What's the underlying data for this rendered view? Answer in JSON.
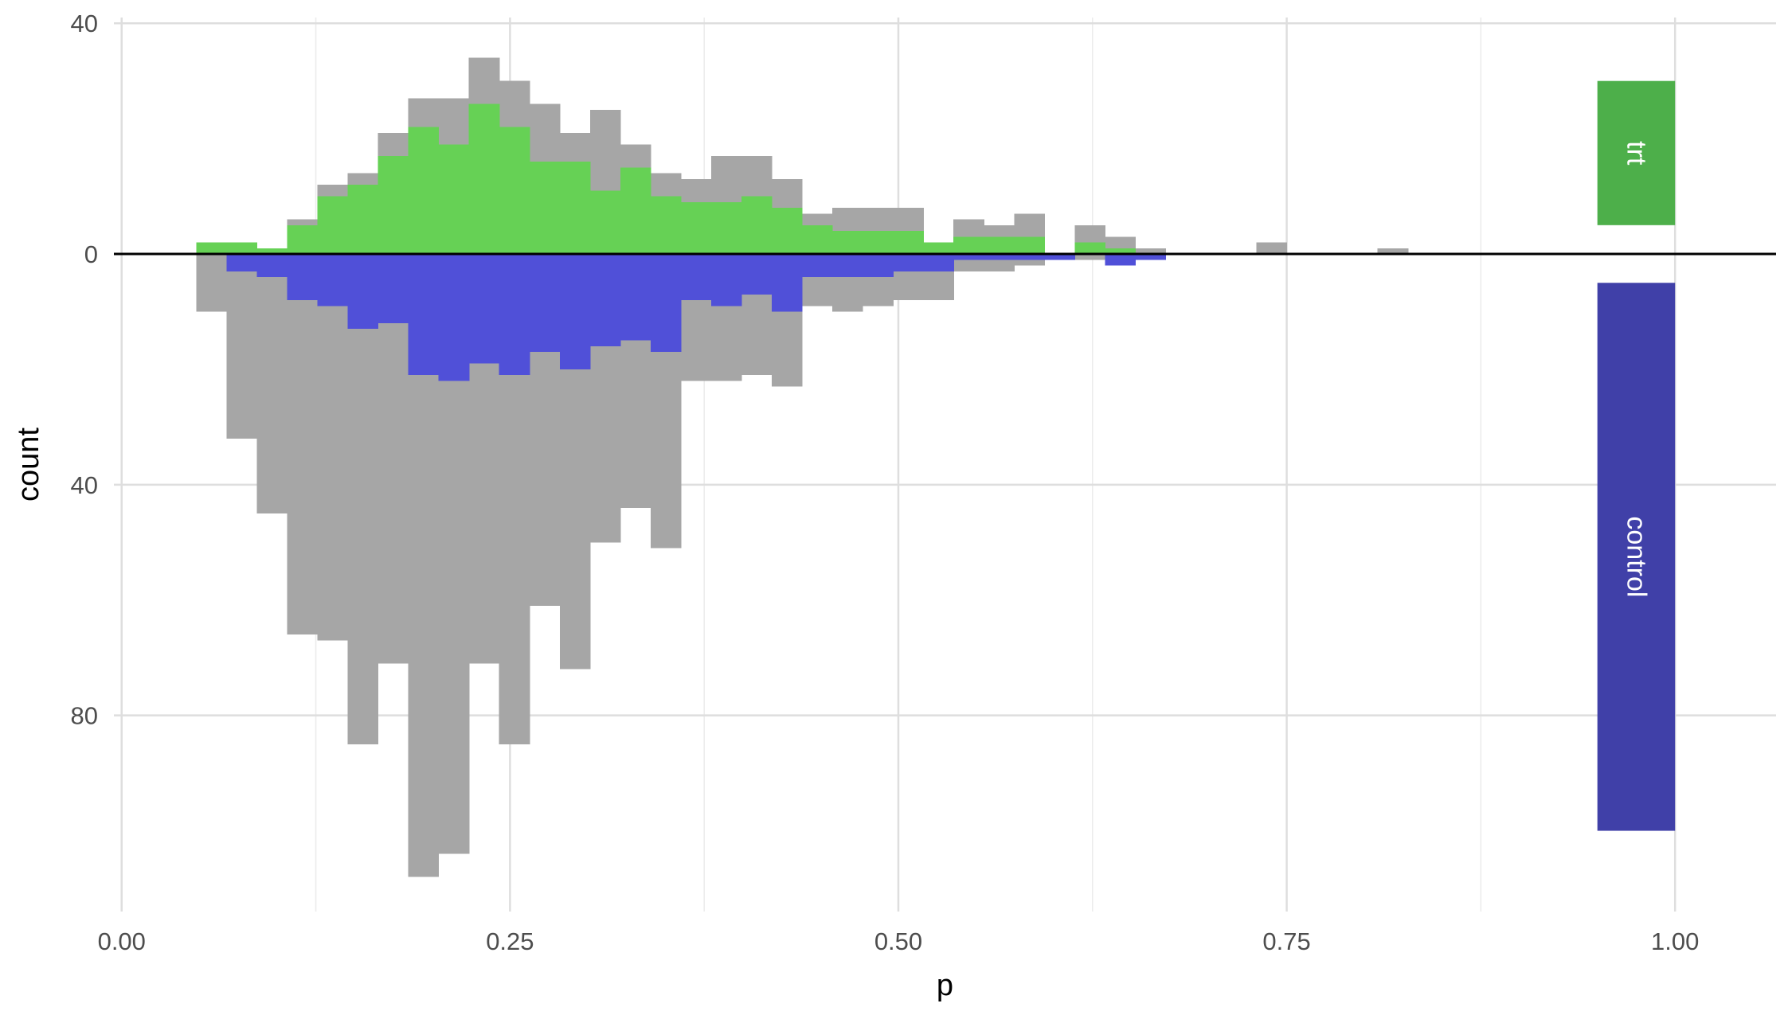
{
  "chart_data": {
    "type": "bar",
    "subtype": "mirrored histogram",
    "xlabel": "p",
    "ylabel": "count",
    "xlim": [
      -0.005,
      1.065
    ],
    "ylim": [
      -114,
      41
    ],
    "x_ticks": [
      0.0,
      0.25,
      0.5,
      0.75,
      1.0
    ],
    "x_tick_labels": [
      "0.00",
      "0.25",
      "0.50",
      "0.75",
      "1.00"
    ],
    "y_ticks": [
      40,
      0,
      -40,
      -80
    ],
    "y_tick_labels": [
      "40",
      "0",
      "40",
      "80"
    ],
    "grid": true,
    "bin_width": 0.0195,
    "x_start": 0.048,
    "groups": [
      {
        "name": "trt",
        "color": "#4daf4a"
      },
      {
        "name": "control",
        "color": "#4040a8"
      }
    ],
    "series": [
      {
        "name": "trt",
        "direction": "up",
        "overall_color": "#a6a6a6",
        "matched_color": "#66d155",
        "overall": [
          2,
          2,
          1,
          6,
          12,
          14,
          21,
          27,
          27,
          34,
          30,
          26,
          21,
          25,
          19,
          14,
          13,
          17,
          17,
          13,
          7,
          8,
          8,
          8,
          2,
          6,
          5,
          7,
          0,
          5,
          3,
          1,
          0,
          0,
          0,
          2,
          0,
          0,
          0,
          1
        ],
        "matched": [
          2,
          2,
          1,
          5,
          10,
          12,
          17,
          22,
          19,
          26,
          22,
          16,
          16,
          11,
          15,
          10,
          9,
          9,
          10,
          8,
          5,
          4,
          4,
          4,
          2,
          3,
          3,
          3,
          0,
          2,
          1,
          0,
          0,
          0,
          0,
          0,
          0,
          0,
          0,
          0
        ]
      },
      {
        "name": "control",
        "direction": "down",
        "overall_color": "#a6a6a6",
        "matched_color": "#5050d8",
        "overall": [
          10,
          32,
          45,
          66,
          67,
          85,
          71,
          108,
          104,
          71,
          85,
          61,
          72,
          50,
          44,
          51,
          22,
          22,
          21,
          23,
          9,
          10,
          9,
          8,
          8,
          3,
          3,
          2,
          1,
          1,
          2,
          1,
          0,
          0,
          0,
          0,
          0,
          0,
          0,
          0
        ],
        "matched": [
          0,
          3,
          4,
          8,
          9,
          13,
          12,
          21,
          22,
          19,
          21,
          17,
          20,
          16,
          15,
          17,
          8,
          9,
          7,
          10,
          4,
          4,
          4,
          3,
          3,
          1,
          1,
          1,
          1,
          0,
          2,
          1,
          0,
          0,
          0,
          0,
          0,
          0,
          0,
          0
        ]
      }
    ],
    "strips": [
      {
        "label": "trt",
        "color": "#4daf4a",
        "y_from": 5,
        "y_to": 30
      },
      {
        "label": "control",
        "color": "#4040a8",
        "y_from": -5,
        "y_to": -100
      }
    ],
    "strip_x_range": [
      0.95,
      1.0
    ],
    "zero_line": true
  }
}
